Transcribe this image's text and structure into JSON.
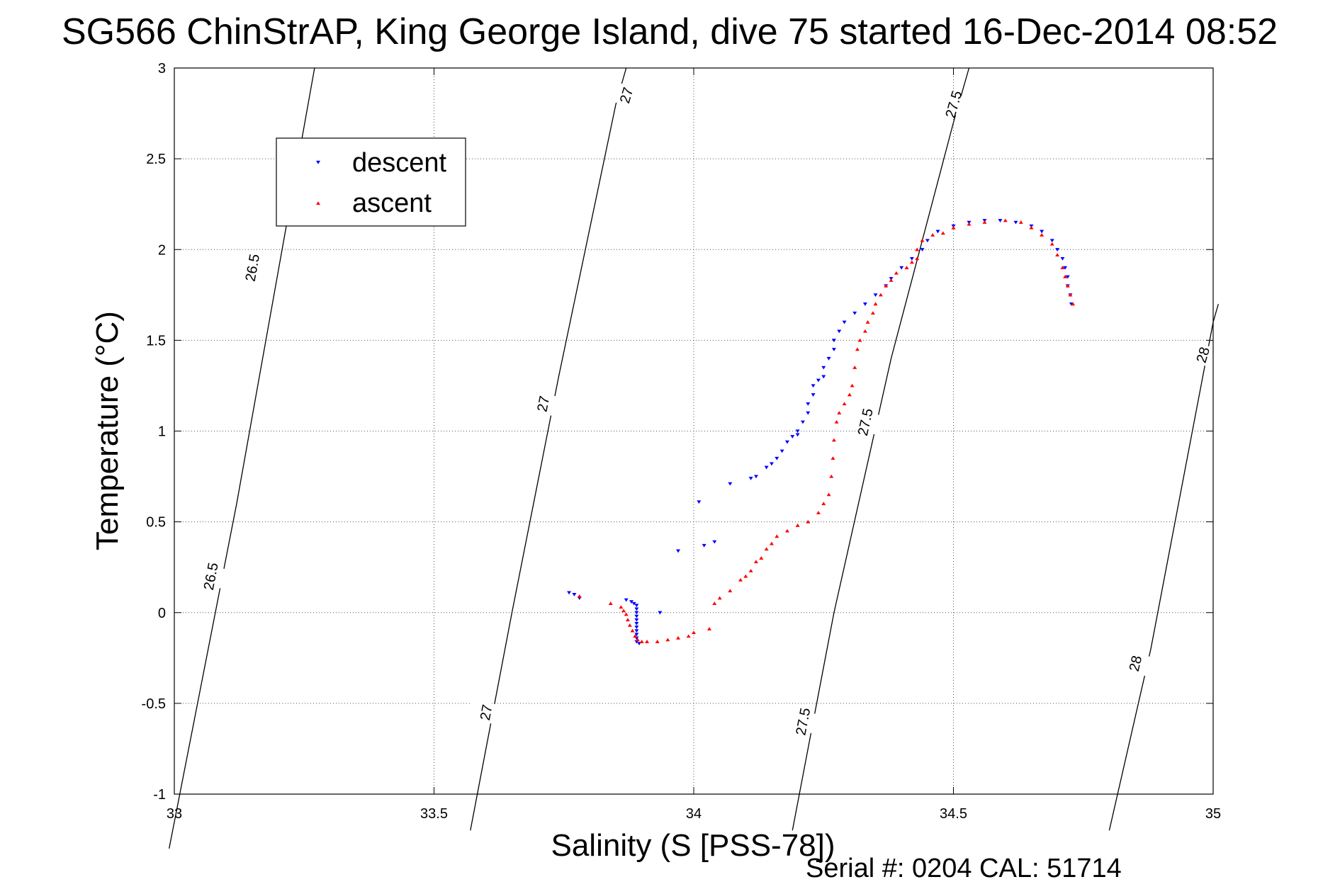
{
  "chart_data": {
    "type": "scatter",
    "title": "SG566 ChinStrAP, King George Island, dive 75 started 16-Dec-2014 08:52",
    "xlabel": "Salinity (S [PSS-78])",
    "ylabel": "Temperature (°C)",
    "xlim": [
      33,
      35
    ],
    "ylim": [
      -1,
      3
    ],
    "xticks": [
      33,
      33.5,
      34,
      34.5,
      35
    ],
    "xtick_labels": [
      "33",
      "33.5",
      "34",
      "34.5",
      "35"
    ],
    "yticks": [
      -1,
      -0.5,
      0,
      0.5,
      1,
      1.5,
      2,
      2.5,
      3
    ],
    "ytick_labels": [
      "-1",
      "-0.5",
      "0",
      "0.5",
      "1",
      "1.5",
      "2",
      "2.5",
      "3"
    ],
    "grid": true,
    "legend_position": "top-left",
    "footer": "Serial #: 0204  CAL: 51714",
    "series": [
      {
        "name": "descent",
        "color": "#0000ff",
        "marker": "triangle-down",
        "points": [
          [
            33.76,
            0.11
          ],
          [
            33.77,
            0.1
          ],
          [
            33.78,
            0.08
          ],
          [
            33.87,
            0.07
          ],
          [
            33.88,
            0.06
          ],
          [
            33.885,
            0.05
          ],
          [
            33.89,
            0.04
          ],
          [
            33.89,
            0.02
          ],
          [
            33.89,
            0.0
          ],
          [
            33.89,
            -0.02
          ],
          [
            33.89,
            -0.04
          ],
          [
            33.89,
            -0.06
          ],
          [
            33.89,
            -0.08
          ],
          [
            33.89,
            -0.1
          ],
          [
            33.89,
            -0.12
          ],
          [
            33.89,
            -0.14
          ],
          [
            33.89,
            -0.16
          ],
          [
            33.895,
            -0.17
          ],
          [
            33.935,
            0.0
          ],
          [
            33.97,
            0.34
          ],
          [
            34.02,
            0.37
          ],
          [
            34.04,
            0.39
          ],
          [
            34.01,
            0.61
          ],
          [
            34.07,
            0.71
          ],
          [
            34.11,
            0.74
          ],
          [
            34.12,
            0.75
          ],
          [
            34.14,
            0.8
          ],
          [
            34.15,
            0.82
          ],
          [
            34.16,
            0.85
          ],
          [
            34.17,
            0.89
          ],
          [
            34.18,
            0.94
          ],
          [
            34.19,
            0.97
          ],
          [
            34.2,
            0.98
          ],
          [
            34.2,
            1.0
          ],
          [
            34.21,
            1.05
          ],
          [
            34.22,
            1.1
          ],
          [
            34.22,
            1.15
          ],
          [
            34.23,
            1.2
          ],
          [
            34.23,
            1.25
          ],
          [
            34.24,
            1.28
          ],
          [
            34.25,
            1.3
          ],
          [
            34.25,
            1.35
          ],
          [
            34.26,
            1.4
          ],
          [
            34.27,
            1.45
          ],
          [
            34.27,
            1.5
          ],
          [
            34.28,
            1.55
          ],
          [
            34.29,
            1.6
          ],
          [
            34.31,
            1.65
          ],
          [
            34.33,
            1.7
          ],
          [
            34.35,
            1.75
          ],
          [
            34.37,
            1.8
          ],
          [
            34.38,
            1.84
          ],
          [
            34.4,
            1.9
          ],
          [
            34.42,
            1.95
          ],
          [
            34.44,
            2.0
          ],
          [
            34.45,
            2.05
          ],
          [
            34.47,
            2.1
          ],
          [
            34.5,
            2.13
          ],
          [
            34.53,
            2.15
          ],
          [
            34.56,
            2.16
          ],
          [
            34.59,
            2.16
          ],
          [
            34.62,
            2.15
          ],
          [
            34.65,
            2.13
          ],
          [
            34.67,
            2.1
          ],
          [
            34.69,
            2.05
          ],
          [
            34.7,
            2.0
          ],
          [
            34.71,
            1.95
          ],
          [
            34.715,
            1.9
          ],
          [
            34.72,
            1.85
          ],
          [
            34.72,
            1.8
          ],
          [
            34.725,
            1.75
          ],
          [
            34.727,
            1.7
          ]
        ]
      },
      {
        "name": "ascent",
        "color": "#ff0000",
        "marker": "triangle-up",
        "points": [
          [
            33.78,
            0.09
          ],
          [
            33.84,
            0.05
          ],
          [
            33.86,
            0.03
          ],
          [
            33.865,
            0.01
          ],
          [
            33.87,
            -0.01
          ],
          [
            33.873,
            -0.04
          ],
          [
            33.877,
            -0.07
          ],
          [
            33.882,
            -0.1
          ],
          [
            33.887,
            -0.13
          ],
          [
            33.892,
            -0.15
          ],
          [
            33.9,
            -0.16
          ],
          [
            33.91,
            -0.16
          ],
          [
            33.93,
            -0.16
          ],
          [
            33.95,
            -0.15
          ],
          [
            33.97,
            -0.14
          ],
          [
            33.99,
            -0.13
          ],
          [
            34.0,
            -0.11
          ],
          [
            34.03,
            -0.09
          ],
          [
            34.04,
            0.05
          ],
          [
            34.05,
            0.08
          ],
          [
            34.07,
            0.12
          ],
          [
            34.09,
            0.18
          ],
          [
            34.1,
            0.2
          ],
          [
            34.11,
            0.23
          ],
          [
            34.12,
            0.28
          ],
          [
            34.13,
            0.3
          ],
          [
            34.14,
            0.35
          ],
          [
            34.15,
            0.38
          ],
          [
            34.16,
            0.42
          ],
          [
            34.18,
            0.45
          ],
          [
            34.2,
            0.48
          ],
          [
            34.22,
            0.5
          ],
          [
            34.24,
            0.55
          ],
          [
            34.25,
            0.6
          ],
          [
            34.26,
            0.65
          ],
          [
            34.265,
            0.75
          ],
          [
            34.268,
            0.85
          ],
          [
            34.27,
            0.95
          ],
          [
            34.275,
            1.05
          ],
          [
            34.28,
            1.1
          ],
          [
            34.29,
            1.15
          ],
          [
            34.3,
            1.2
          ],
          [
            34.305,
            1.25
          ],
          [
            34.31,
            1.35
          ],
          [
            34.315,
            1.45
          ],
          [
            34.32,
            1.5
          ],
          [
            34.33,
            1.55
          ],
          [
            34.335,
            1.6
          ],
          [
            34.345,
            1.65
          ],
          [
            34.35,
            1.7
          ],
          [
            34.36,
            1.75
          ],
          [
            34.37,
            1.8
          ],
          [
            34.38,
            1.83
          ],
          [
            34.39,
            1.87
          ],
          [
            34.41,
            1.9
          ],
          [
            34.42,
            1.93
          ],
          [
            34.43,
            1.95
          ],
          [
            34.43,
            2.0
          ],
          [
            34.44,
            2.05
          ],
          [
            34.46,
            2.08
          ],
          [
            34.48,
            2.09
          ],
          [
            34.5,
            2.12
          ],
          [
            34.53,
            2.14
          ],
          [
            34.56,
            2.15
          ],
          [
            34.6,
            2.16
          ],
          [
            34.63,
            2.15
          ],
          [
            34.65,
            2.12
          ],
          [
            34.67,
            2.08
          ],
          [
            34.69,
            2.03
          ],
          [
            34.7,
            1.97
          ],
          [
            34.71,
            1.9
          ],
          [
            34.715,
            1.85
          ],
          [
            34.72,
            1.8
          ],
          [
            34.725,
            1.75
          ],
          [
            34.73,
            1.7
          ]
        ]
      }
    ],
    "isopycnals": [
      {
        "label": "26.5",
        "points": [
          [
            32.99,
            -1.3
          ],
          [
            33.12,
            0.6
          ],
          [
            33.22,
            2.2
          ],
          [
            33.27,
            3.0
          ]
        ],
        "label_positions": [
          [
            33.07,
            0.2
          ],
          [
            33.15,
            1.9
          ]
        ]
      },
      {
        "label": "27",
        "points": [
          [
            33.57,
            -1.2
          ],
          [
            33.65,
            0.0
          ],
          [
            33.74,
            1.3
          ],
          [
            33.85,
            2.8
          ],
          [
            33.87,
            3.0
          ]
        ],
        "label_positions": [
          [
            33.6,
            -0.55
          ],
          [
            33.71,
            1.15
          ],
          [
            33.87,
            2.85
          ]
        ]
      },
      {
        "label": "27.5",
        "points": [
          [
            34.19,
            -1.2
          ],
          [
            34.27,
            0.0
          ],
          [
            34.38,
            1.4
          ],
          [
            34.5,
            2.7
          ],
          [
            34.53,
            3.0
          ]
        ],
        "label_positions": [
          [
            34.21,
            -0.6
          ],
          [
            34.33,
            1.05
          ],
          [
            34.5,
            2.8
          ]
        ]
      },
      {
        "label": "28",
        "points": [
          [
            34.8,
            -1.2
          ],
          [
            34.88,
            -0.2
          ],
          [
            35.0,
            1.6
          ],
          [
            35.01,
            1.7
          ]
        ],
        "label_positions": [
          [
            34.85,
            -0.28
          ],
          [
            34.98,
            1.42
          ]
        ]
      }
    ]
  }
}
